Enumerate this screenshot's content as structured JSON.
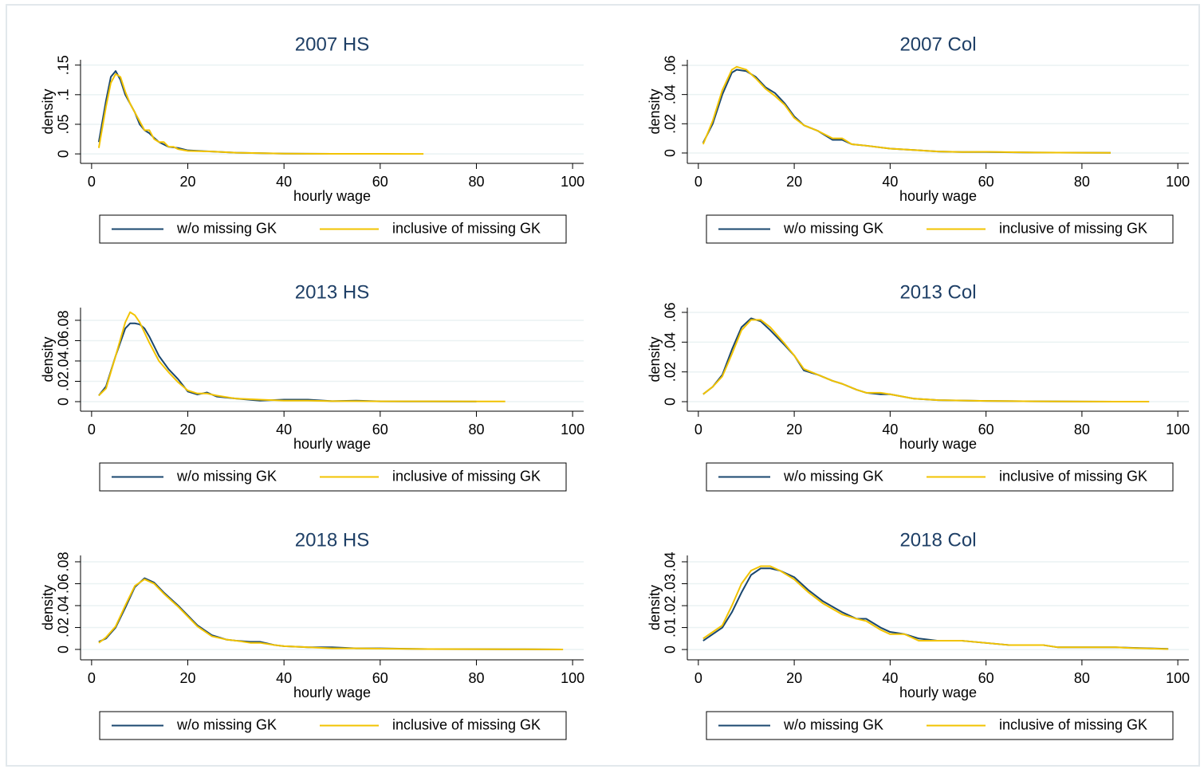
{
  "chart_data": [
    {
      "type": "line",
      "title": "2007 HS",
      "x_label": "hourly wage",
      "y_label": "density",
      "grid": true,
      "legend": "bottom",
      "xlim": [
        -2.3,
        102.3
      ],
      "xticks": [
        0,
        20,
        40,
        60,
        80,
        100
      ],
      "ylim": [
        -0.016,
        0.159
      ],
      "yticks": [
        0,
        {
          "value": 0.05,
          "label": ".05"
        },
        {
          "value": 0.1,
          "label": ".1"
        },
        {
          "value": 0.15,
          "label": ".15"
        }
      ],
      "x": [
        1.5,
        3,
        4,
        5,
        6,
        7,
        8,
        9,
        10,
        11,
        12,
        13,
        14,
        15,
        16,
        17,
        18,
        20,
        25,
        30,
        40,
        50,
        60,
        69
      ],
      "series": [
        {
          "name": "w/o missing GK",
          "color": "#1a476f",
          "values": [
            0.02,
            0.09,
            0.13,
            0.14,
            0.125,
            0.1,
            0.085,
            0.07,
            0.05,
            0.04,
            0.035,
            0.027,
            0.02,
            0.016,
            0.012,
            0.011,
            0.01,
            0.006,
            0.004,
            0.002,
            0.0005,
            0.0002,
            null,
            null
          ]
        },
        {
          "name": "inclusive of missing GK",
          "color": "#f2c300",
          "values": [
            0.01,
            0.08,
            0.12,
            0.135,
            0.13,
            0.105,
            0.085,
            0.07,
            0.055,
            0.04,
            0.04,
            0.025,
            0.02,
            0.02,
            0.012,
            0.012,
            0.008,
            0.005,
            0.004,
            0.002,
            0.0005,
            0.0002,
            0.0001,
            0
          ]
        }
      ]
    },
    {
      "type": "line",
      "title": "2007 Col",
      "x_label": "hourly wage",
      "y_label": "density",
      "grid": true,
      "legend": "bottom",
      "xlim": [
        -2.3,
        102.3
      ],
      "xticks": [
        0,
        20,
        40,
        60,
        80,
        100
      ],
      "ylim": [
        -0.0071,
        0.0638
      ],
      "yticks": [
        0,
        {
          "value": 0.02,
          "label": ".02"
        },
        {
          "value": 0.04,
          "label": ".04"
        },
        {
          "value": 0.06,
          "label": ".06"
        }
      ],
      "x": [
        1,
        3,
        5,
        7,
        8,
        10,
        12,
        14,
        16,
        18,
        20,
        22,
        25,
        28,
        30,
        32,
        35,
        40,
        45,
        50,
        55,
        60,
        70,
        80,
        86
      ],
      "series": [
        {
          "name": "w/o missing GK",
          "color": "#1a476f",
          "values": [
            0.007,
            0.02,
            0.04,
            0.055,
            0.057,
            0.056,
            0.052,
            0.045,
            0.041,
            0.034,
            0.025,
            0.019,
            0.015,
            0.009,
            0.009,
            0.006,
            0.005,
            0.003,
            0.002,
            0.001,
            0.0007,
            0.0007,
            0.0003,
            0.0002,
            0.0001
          ]
        },
        {
          "name": "inclusive of missing GK",
          "color": "#f2c300",
          "values": [
            0.006,
            0.022,
            0.043,
            0.057,
            0.059,
            0.057,
            0.051,
            0.044,
            0.039,
            0.033,
            0.024,
            0.019,
            0.015,
            0.01,
            0.01,
            0.006,
            0.005,
            0.003,
            0.002,
            0.001,
            0.0007,
            0.0008,
            0.0003,
            0.0002,
            0.0001
          ]
        }
      ]
    },
    {
      "type": "line",
      "title": "2013 HS",
      "x_label": "hourly wage",
      "y_label": "density",
      "grid": true,
      "legend": "bottom",
      "xlim": [
        -2.3,
        102.3
      ],
      "xticks": [
        0,
        20,
        40,
        60,
        80,
        100
      ],
      "ylim": [
        -0.0094,
        0.0925
      ],
      "yticks": [
        0,
        {
          "value": 0.02,
          "label": ".02"
        },
        {
          "value": 0.04,
          "label": ".04"
        },
        {
          "value": 0.06,
          "label": ".06"
        },
        {
          "value": 0.08,
          "label": ".08"
        }
      ],
      "x": [
        1.5,
        3,
        5,
        7,
        8,
        9,
        10,
        11,
        12,
        14,
        16,
        18,
        20,
        22,
        24,
        26,
        30,
        35,
        40,
        45,
        50,
        55,
        60,
        70,
        80,
        86
      ],
      "series": [
        {
          "name": "w/o missing GK",
          "color": "#1a476f",
          "values": [
            0.006,
            0.015,
            0.045,
            0.072,
            0.077,
            0.077,
            0.076,
            0.072,
            0.064,
            0.045,
            0.032,
            0.022,
            0.01,
            0.007,
            0.009,
            0.005,
            0.003,
            0.001,
            0.002,
            0.002,
            0.0005,
            0.001,
            0.0003,
            0.0002,
            0.0001,
            null
          ]
        },
        {
          "name": "inclusive of missing GK",
          "color": "#f2c300",
          "values": [
            0.006,
            0.013,
            0.045,
            0.078,
            0.088,
            0.085,
            0.078,
            0.068,
            0.058,
            0.04,
            0.029,
            0.019,
            0.011,
            0.008,
            0.008,
            0.006,
            0.003,
            0.002,
            0.001,
            0.001,
            0.0005,
            0.0005,
            0.0003,
            0.0003,
            0.0002,
            0.0002
          ]
        }
      ]
    },
    {
      "type": "line",
      "title": "2013 Col",
      "x_label": "hourly wage",
      "y_label": "density",
      "grid": true,
      "legend": "bottom",
      "xlim": [
        -2.3,
        102.3
      ],
      "xticks": [
        0,
        20,
        40,
        60,
        80,
        100
      ],
      "ylim": [
        -0.0064,
        0.0632
      ],
      "yticks": [
        0,
        {
          "value": 0.02,
          "label": ".02"
        },
        {
          "value": 0.04,
          "label": ".04"
        },
        {
          "value": 0.06,
          "label": ".06"
        }
      ],
      "x": [
        1,
        3,
        5,
        7,
        9,
        11,
        13,
        15,
        18,
        20,
        22,
        25,
        28,
        30,
        33,
        35,
        38,
        40,
        45,
        50,
        60,
        70,
        80,
        94
      ],
      "series": [
        {
          "name": "w/o missing GK",
          "color": "#1a476f",
          "values": [
            0.005,
            0.01,
            0.018,
            0.035,
            0.05,
            0.056,
            0.054,
            0.048,
            0.038,
            0.031,
            0.021,
            0.018,
            0.014,
            0.012,
            0.008,
            0.006,
            0.005,
            0.005,
            0.002,
            0.001,
            0.0005,
            0.0002,
            0.0001,
            0
          ]
        },
        {
          "name": "inclusive of missing GK",
          "color": "#f2c300",
          "values": [
            0.005,
            0.01,
            0.017,
            0.032,
            0.048,
            0.055,
            0.055,
            0.05,
            0.039,
            0.031,
            0.022,
            0.018,
            0.014,
            0.012,
            0.008,
            0.006,
            0.006,
            0.005,
            0.002,
            0.001,
            0.0005,
            0.0002,
            0.0001,
            0
          ]
        }
      ]
    },
    {
      "type": "line",
      "title": "2018 HS",
      "x_label": "hourly wage",
      "y_label": "density",
      "grid": true,
      "legend": "bottom",
      "xlim": [
        -2.3,
        102.3
      ],
      "xticks": [
        0,
        20,
        40,
        60,
        80,
        100
      ],
      "ylim": [
        -0.0095,
        0.0858
      ],
      "yticks": [
        0,
        {
          "value": 0.02,
          "label": ".02"
        },
        {
          "value": 0.04,
          "label": ".04"
        },
        {
          "value": 0.06,
          "label": ".06"
        },
        {
          "value": 0.08,
          "label": ".08"
        }
      ],
      "x": [
        1.5,
        3,
        5,
        7,
        9,
        11,
        13,
        15,
        18,
        20,
        22,
        25,
        28,
        30,
        33,
        35,
        38,
        40,
        45,
        50,
        55,
        60,
        70,
        80,
        90,
        98
      ],
      "series": [
        {
          "name": "w/o missing GK",
          "color": "#1a476f",
          "values": [
            0.007,
            0.01,
            0.02,
            0.038,
            0.057,
            0.065,
            0.061,
            0.052,
            0.04,
            0.031,
            0.022,
            0.013,
            0.009,
            0.008,
            0.007,
            0.007,
            0.004,
            0.003,
            0.002,
            0.002,
            0.001,
            0.001,
            0.0003,
            0.0002,
            0.0001,
            0
          ]
        },
        {
          "name": "inclusive of missing GK",
          "color": "#f2c300",
          "values": [
            0.006,
            0.011,
            0.021,
            0.04,
            0.058,
            0.064,
            0.06,
            0.051,
            0.039,
            0.03,
            0.021,
            0.012,
            0.009,
            0.008,
            0.006,
            0.006,
            0.004,
            0.003,
            0.002,
            0.001,
            0.001,
            0.0007,
            0.0003,
            0.0002,
            0.0001,
            0
          ]
        }
      ]
    },
    {
      "type": "line",
      "title": "2018 Col",
      "x_label": "hourly wage",
      "y_label": "density",
      "grid": true,
      "legend": "bottom",
      "xlim": [
        -2.3,
        102.3
      ],
      "xticks": [
        0,
        20,
        40,
        60,
        80,
        100
      ],
      "ylim": [
        -0.0047,
        0.0429
      ],
      "yticks": [
        0,
        {
          "value": 0.01,
          "label": ".01"
        },
        {
          "value": 0.02,
          "label": ".02"
        },
        {
          "value": 0.03,
          "label": ".03"
        },
        {
          "value": 0.04,
          "label": ".04"
        }
      ],
      "x": [
        1,
        3,
        5,
        7,
        9,
        11,
        13,
        15,
        17,
        20,
        23,
        26,
        30,
        33,
        35,
        38,
        40,
        43,
        46,
        50,
        55,
        60,
        65,
        70,
        72,
        75,
        80,
        87,
        90,
        98
      ],
      "series": [
        {
          "name": "w/o missing GK",
          "color": "#1a476f",
          "values": [
            0.004,
            0.007,
            0.01,
            0.017,
            0.026,
            0.034,
            0.037,
            0.037,
            0.036,
            0.033,
            0.027,
            0.022,
            0.017,
            0.014,
            0.014,
            0.01,
            0.008,
            0.007,
            0.005,
            0.004,
            0.004,
            0.003,
            0.002,
            0.002,
            0.002,
            0.001,
            0.001,
            0.001,
            0.0008,
            0.0003
          ]
        },
        {
          "name": "inclusive of missing GK",
          "color": "#f2c300",
          "values": [
            0.005,
            0.008,
            0.011,
            0.02,
            0.03,
            0.036,
            0.038,
            0.038,
            0.036,
            0.032,
            0.026,
            0.021,
            0.016,
            0.014,
            0.013,
            0.009,
            0.007,
            0.007,
            0.004,
            0.004,
            0.004,
            0.003,
            0.002,
            0.002,
            0.002,
            0.001,
            0.001,
            0.001,
            0.0007,
            0.0002
          ]
        }
      ]
    }
  ]
}
